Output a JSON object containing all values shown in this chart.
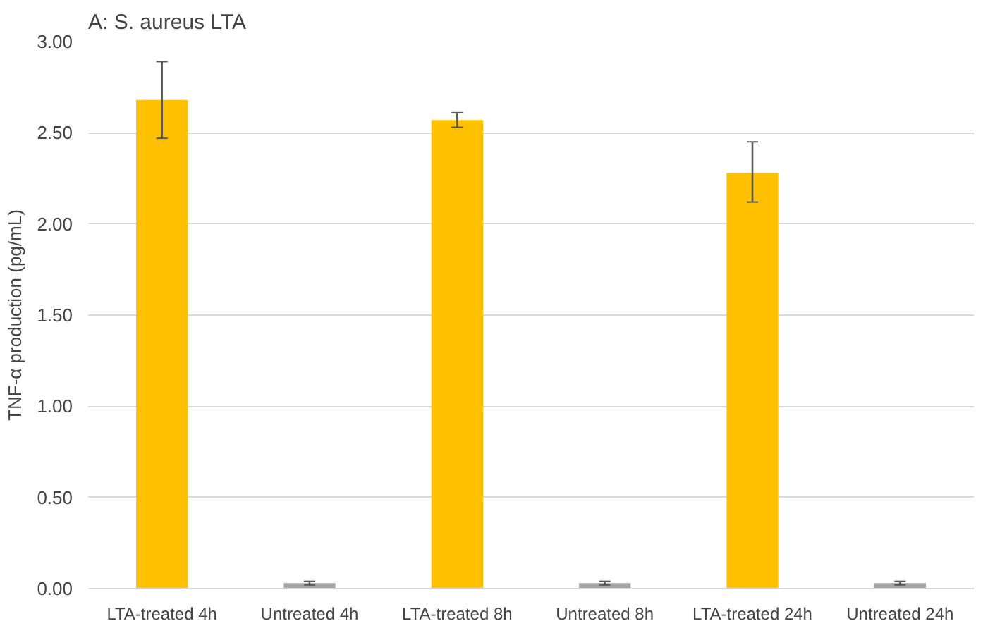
{
  "chart_data": {
    "type": "bar",
    "title": "A: S. aureus LTA",
    "ylabel": "TNF-α production (pg/mL)",
    "categories": [
      "LTA-treated 4h",
      "Untreated 4h",
      "LTA-treated 8h",
      "Untreated 8h",
      "LTA-treated 24h",
      "Untreated 24h"
    ],
    "values": [
      2.68,
      0.03,
      2.57,
      0.03,
      2.28,
      0.03
    ],
    "colors": [
      "#ffc000",
      "#a5a5a5",
      "#ffc000",
      "#a5a5a5",
      "#ffc000",
      "#a5a5a5"
    ],
    "errors": [
      [
        2.47,
        2.89
      ],
      0.01,
      [
        2.53,
        2.61
      ],
      0.01,
      [
        2.12,
        2.45
      ],
      0.01
    ],
    "ylim": [
      0,
      3
    ],
    "yticks": [
      {
        "value": 0,
        "label": "0.00"
      },
      {
        "value": 0.5,
        "label": "0.50"
      },
      {
        "value": 1,
        "label": "1.00"
      },
      {
        "value": 1.5,
        "label": "1.50"
      },
      {
        "value": 2,
        "label": "2.00"
      },
      {
        "value": 2.5,
        "label": "2.50"
      },
      {
        "value": 3,
        "label": "3.00"
      }
    ],
    "grid": "y"
  }
}
